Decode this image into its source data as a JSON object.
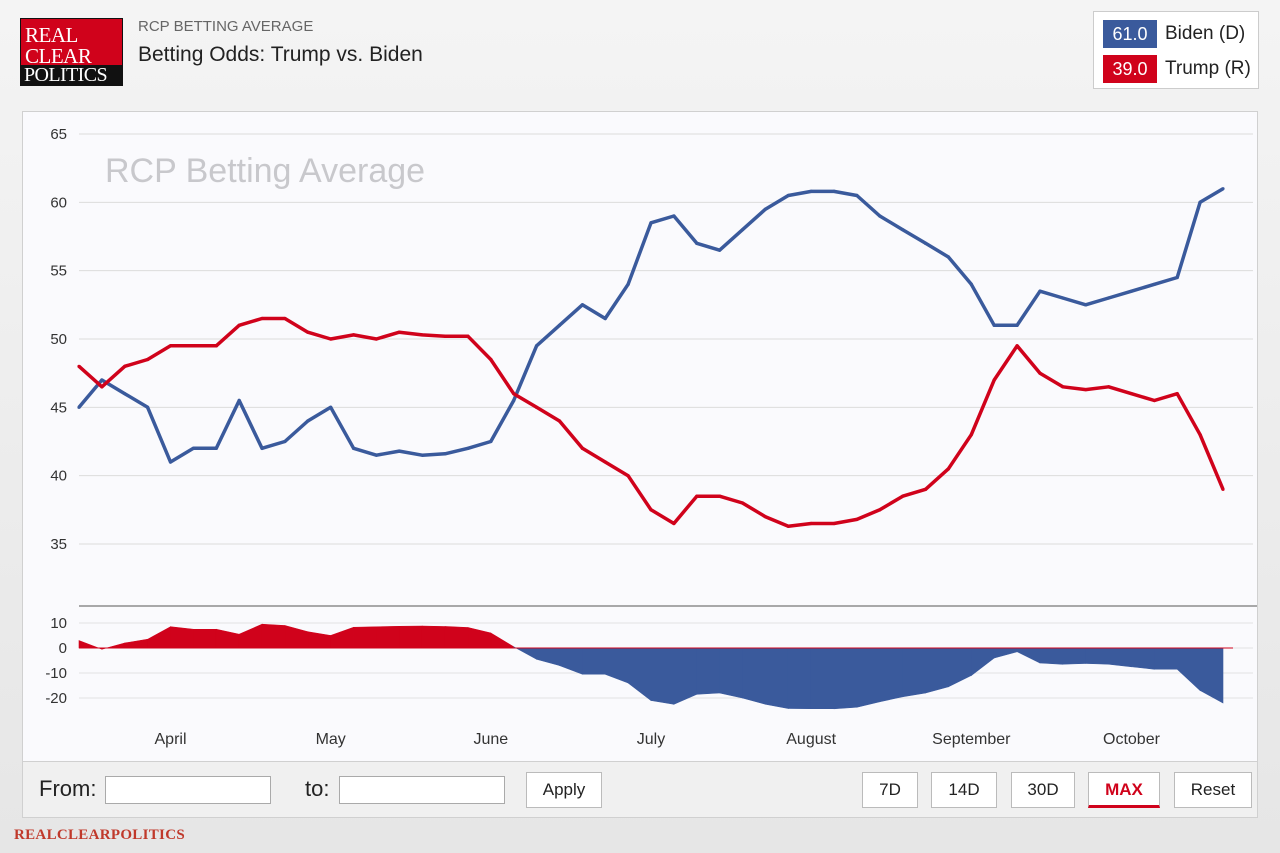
{
  "header": {
    "logo_line1": "REAL",
    "logo_line2": "CLEAR",
    "logo_line3": "POLITICS",
    "subtitle": "RCP BETTING AVERAGE",
    "title": "Betting Odds: Trump vs. Biden"
  },
  "legend": [
    {
      "value": "61.0",
      "name": "Biden (D)",
      "color": "#3a5a9c"
    },
    {
      "value": "39.0",
      "name": "Trump (R)",
      "color": "#d0021b"
    }
  ],
  "controls": {
    "from_label": "From:",
    "to_label": "to:",
    "from_value": "",
    "to_value": "",
    "apply_label": "Apply",
    "buttons": [
      "7D",
      "14D",
      "30D",
      "MAX",
      "Reset"
    ],
    "active": "MAX"
  },
  "footer": "REALCLEARPOLITICS",
  "chart_data": {
    "type": "line",
    "watermark": "RCP Betting Average",
    "ylim": [
      35,
      65
    ],
    "yticks": [
      35,
      40,
      45,
      50,
      55,
      60,
      65
    ],
    "xlabels": [
      "April",
      "May",
      "June",
      "July",
      "August",
      "September",
      "October"
    ],
    "xlabel_positions": [
      0.08,
      0.22,
      0.36,
      0.5,
      0.64,
      0.78,
      0.92
    ],
    "x": [
      0,
      0.02,
      0.04,
      0.06,
      0.08,
      0.1,
      0.12,
      0.14,
      0.16,
      0.18,
      0.2,
      0.22,
      0.24,
      0.26,
      0.28,
      0.3,
      0.32,
      0.34,
      0.36,
      0.38,
      0.4,
      0.42,
      0.44,
      0.46,
      0.48,
      0.5,
      0.52,
      0.54,
      0.56,
      0.58,
      0.6,
      0.62,
      0.64,
      0.66,
      0.68,
      0.7,
      0.72,
      0.74,
      0.76,
      0.78,
      0.8,
      0.82,
      0.84,
      0.86,
      0.88,
      0.9,
      0.92,
      0.94,
      0.96,
      0.98,
      1.0
    ],
    "series": [
      {
        "name": "Biden (D)",
        "color": "#3a5a9c",
        "values": [
          45,
          47,
          46,
          45,
          41,
          42,
          42,
          45.5,
          42,
          42.5,
          44,
          45,
          42,
          41.5,
          41.8,
          41.5,
          41.6,
          42,
          42.5,
          45.5,
          49.5,
          51,
          52.5,
          51.5,
          54,
          58.5,
          59,
          57,
          56.5,
          58,
          59.5,
          60.5,
          60.8,
          60.8,
          60.5,
          59,
          58,
          57,
          56,
          54,
          51,
          51,
          53.5,
          53,
          52.5,
          53,
          53.5,
          54,
          54.5,
          60,
          61
        ]
      },
      {
        "name": "Trump (R)",
        "color": "#d0021b",
        "values": [
          48,
          46.5,
          48,
          48.5,
          49.5,
          49.5,
          49.5,
          51,
          51.5,
          51.5,
          50.5,
          50,
          50.3,
          50,
          50.5,
          50.3,
          50.2,
          50.2,
          48.5,
          46,
          45,
          44,
          42,
          41,
          40,
          37.5,
          36.5,
          38.5,
          38.5,
          38,
          37,
          36.3,
          36.5,
          36.5,
          36.8,
          37.5,
          38.5,
          39,
          40.5,
          43,
          47,
          49.5,
          47.5,
          46.5,
          46.3,
          46.5,
          46,
          45.5,
          46,
          43,
          39
        ]
      }
    ],
    "spread": {
      "ylim": [
        -25,
        15
      ],
      "yticks": [
        10,
        0,
        -10,
        -20
      ]
    }
  }
}
